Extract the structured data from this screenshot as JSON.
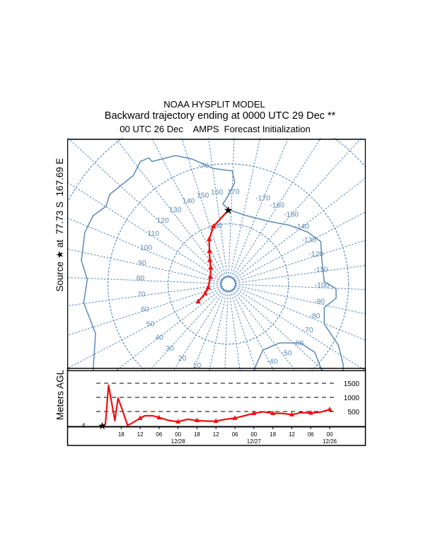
{
  "header": {
    "line1": "NOAA HYSPLIT MODEL",
    "line2": "Backward trajectory ending at 0000 UTC 29 Dec **",
    "line3": "00 UTC 26 Dec    AMPS  Forecast Initialization"
  },
  "source_label": "Source ★ at  77.73 S  167.69 E",
  "colors": {
    "map": "#5b8ab8",
    "trajectory": "#ee1111",
    "frame": "#000000"
  },
  "map": {
    "latitude_labels": [
      "-70",
      "-80"
    ],
    "longitude_labels": [
      "170",
      "160",
      "150",
      "140",
      "130",
      "120",
      "110",
      "100",
      "90",
      "80",
      "70",
      "60",
      "50",
      "40",
      "30",
      "20",
      "10",
      "-170",
      "-160",
      "-150",
      "-140",
      "-130",
      "-120",
      "-110",
      "-100",
      "-90",
      "-80",
      "-70",
      "-60",
      "-50",
      "-40"
    ]
  },
  "chart_data": [
    {
      "type": "line",
      "title": "",
      "projection": "polar stereographic",
      "source": {
        "lat": -77.73,
        "lon": 167.69
      },
      "trajectory": [
        {
          "lat": -77.73,
          "lon": 167.69
        },
        {
          "lat": -80.1,
          "lon": 153.3
        },
        {
          "lat": -81.9,
          "lon": 144.6
        },
        {
          "lat": -83.7,
          "lon": 137.9
        },
        {
          "lat": -85.0,
          "lon": 129.8
        },
        {
          "lat": -86.0,
          "lon": 120.7
        },
        {
          "lat": -86.8,
          "lon": 99.5
        },
        {
          "lat": -86.6,
          "lon": 67.7
        },
        {
          "lat": -85.85,
          "lon": 55.5
        },
        {
          "lat": -84.2,
          "lon": 47.4
        }
      ]
    },
    {
      "type": "line",
      "ylabel": "Meters AGL",
      "start_height_label": "4",
      "ylim": [
        0,
        1500
      ],
      "y_ticks": [
        "500",
        "1000",
        "1500"
      ],
      "y_tick_values": [
        500,
        1000,
        1500
      ],
      "x_ticks": [
        {
          "label": "18",
          "hours_back": 6,
          "date": ""
        },
        {
          "label": "12",
          "hours_back": 12,
          "date": ""
        },
        {
          "label": "06",
          "hours_back": 18,
          "date": ""
        },
        {
          "label": "00",
          "hours_back": 24,
          "date": "12/28"
        },
        {
          "label": "18",
          "hours_back": 30,
          "date": ""
        },
        {
          "label": "12",
          "hours_back": 36,
          "date": ""
        },
        {
          "label": "06",
          "hours_back": 42,
          "date": ""
        },
        {
          "label": "00",
          "hours_back": 48,
          "date": "12/27"
        },
        {
          "label": "18",
          "hours_back": 54,
          "date": ""
        },
        {
          "label": "12",
          "hours_back": 60,
          "date": ""
        },
        {
          "label": "06",
          "hours_back": 66,
          "date": ""
        },
        {
          "label": "00",
          "hours_back": 72,
          "date": "12/26"
        }
      ],
      "hours_back": [
        0,
        1,
        2,
        4,
        5,
        6.5,
        8,
        9,
        12,
        13.5,
        16,
        18,
        21,
        24,
        27,
        30,
        33,
        36,
        39,
        42,
        45,
        48,
        51,
        54,
        57,
        60,
        63,
        66,
        69,
        72
      ],
      "height_m": [
        4,
        50,
        1430,
        180,
        975,
        515,
        15,
        60,
        265,
        350,
        350,
        285,
        185,
        140,
        225,
        185,
        160,
        160,
        225,
        265,
        350,
        435,
        490,
        435,
        435,
        390,
        460,
        450,
        475,
        575
      ]
    }
  ]
}
